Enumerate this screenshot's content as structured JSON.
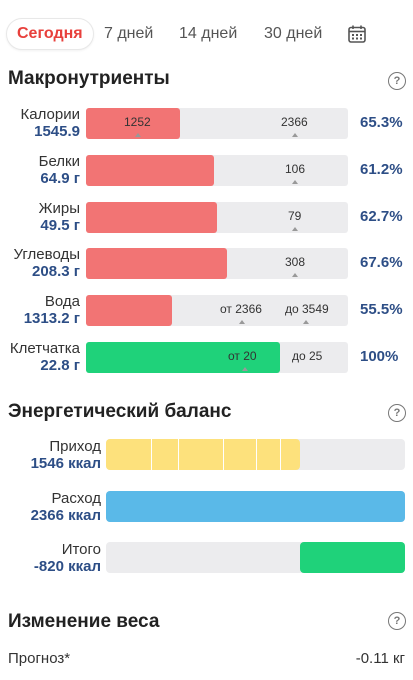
{
  "tabs": [
    {
      "label": "Сегодня"
    },
    {
      "label": "7 дней"
    },
    {
      "label": "14 дней"
    },
    {
      "label": "30 дней"
    }
  ],
  "macros": {
    "title": "Макронутриенты",
    "help": "?",
    "rows": [
      {
        "name": "Калории",
        "value": "1545.9",
        "current": "1252",
        "target": "2366",
        "percent": "65.3%",
        "fill_fraction": 0.36
      },
      {
        "name": "Белки",
        "value": "64.9 г",
        "target": "106",
        "percent": "61.2%",
        "fill_fraction": 0.49
      },
      {
        "name": "Жиры",
        "value": "49.5 г",
        "target": "79",
        "percent": "62.7%",
        "fill_fraction": 0.5
      },
      {
        "name": "Углеводы",
        "value": "208.3 г",
        "target": "308",
        "percent": "67.6%",
        "fill_fraction": 0.54
      },
      {
        "name": "Вода",
        "value": "1313.2 г",
        "range_from": "от 2366",
        "range_to": "до 3549",
        "percent": "55.5%",
        "fill_fraction": 0.33
      },
      {
        "name": "Клетчатка",
        "value": "22.8 г",
        "range_from": "от 20",
        "range_to": "до 25",
        "percent": "100%",
        "fill_fraction": 0.74
      }
    ]
  },
  "energy": {
    "title": "Энергетический баланс",
    "help": "?",
    "intake": {
      "name": "Приход",
      "value": "1546 ккал",
      "fill_fraction": 0.65
    },
    "expense": {
      "name": "Расход",
      "value": "2366 ккал",
      "fill_fraction": 1.0
    },
    "total": {
      "name": "Итого",
      "value": "-820 ккал",
      "fill_fraction": 0.35
    }
  },
  "weight": {
    "title": "Изменение веса",
    "help": "?",
    "forecast_label": "Прогноз*",
    "forecast_value": "-0.11 кг"
  },
  "colors": {
    "active_tab": "#e8403c",
    "macro_fill": "#f27474",
    "fiber_fill": "#1fd27a",
    "intake_fill": "#fde17c",
    "expense_fill": "#5ab9e8",
    "total_fill": "#1fd27a",
    "value_text": "#2d4e86"
  }
}
